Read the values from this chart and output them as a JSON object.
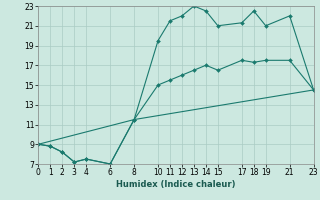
{
  "xlabel": "Humidex (Indice chaleur)",
  "bg_color": "#cce8e0",
  "grid_color": "#aaccC4",
  "line_color": "#1a7a6e",
  "line1_x": [
    0,
    1,
    2,
    3,
    4,
    6,
    8,
    10,
    11,
    12,
    13,
    14,
    15,
    17,
    18,
    19,
    21,
    23
  ],
  "line1_y": [
    9.0,
    8.8,
    8.2,
    7.2,
    7.5,
    7.0,
    11.5,
    19.5,
    21.5,
    22.0,
    23.0,
    22.5,
    21.0,
    21.3,
    22.5,
    21.0,
    22.0,
    14.5
  ],
  "line2_x": [
    0,
    1,
    2,
    3,
    4,
    6,
    8,
    10,
    11,
    12,
    13,
    14,
    15,
    17,
    18,
    19,
    21,
    23
  ],
  "line2_y": [
    9.0,
    8.8,
    8.2,
    7.2,
    7.5,
    7.0,
    11.5,
    15.0,
    15.5,
    16.0,
    16.5,
    17.0,
    16.5,
    17.5,
    17.3,
    17.5,
    17.5,
    14.5
  ],
  "line3_x": [
    0,
    8,
    23
  ],
  "line3_y": [
    9.0,
    11.5,
    14.5
  ],
  "xlim": [
    0,
    23
  ],
  "ylim": [
    7,
    23
  ],
  "xticks": [
    0,
    1,
    2,
    3,
    4,
    6,
    8,
    10,
    11,
    12,
    13,
    14,
    15,
    17,
    18,
    19,
    21,
    23
  ],
  "yticks": [
    7,
    9,
    11,
    13,
    15,
    17,
    19,
    21,
    23
  ],
  "xlabel_fontsize": 6,
  "tick_fontsize": 5.5,
  "lw": 0.8,
  "ms": 2.0
}
